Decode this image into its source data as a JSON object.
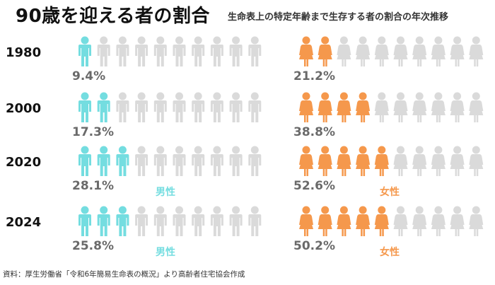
{
  "title": "90歳を迎える者の割合",
  "subtitle": "生命表上の特定年齢まで生存する者の割合の年次推移",
  "source": "資料：厚生労働省「令和6年簡易生命表の概況」より高齢者住宅協会作成",
  "colors": {
    "male": "#74DDE0",
    "female": "#F5984C",
    "inactive": "#DADADA",
    "percent_text": "#6A6A6A"
  },
  "icons": {
    "male": "man-icon",
    "female": "woman-icon"
  },
  "chart_data": {
    "type": "pictogram",
    "icons_per_row": 10,
    "categories": [
      "1980",
      "2000",
      "2020",
      "2024"
    ],
    "series": [
      {
        "name": "男性",
        "values": [
          9.4,
          17.3,
          28.1,
          25.8
        ],
        "labels": [
          "9.4%",
          "17.3%",
          "28.1%",
          "25.8%"
        ],
        "filled_icons": [
          1,
          2,
          3,
          3
        ]
      },
      {
        "name": "女性",
        "values": [
          21.2,
          38.8,
          52.6,
          50.2
        ],
        "labels": [
          "21.2%",
          "38.8%",
          "52.6%",
          "50.2%"
        ],
        "filled_icons": [
          2,
          4,
          5,
          5
        ]
      }
    ],
    "legend_rows": [
      2,
      3
    ]
  }
}
